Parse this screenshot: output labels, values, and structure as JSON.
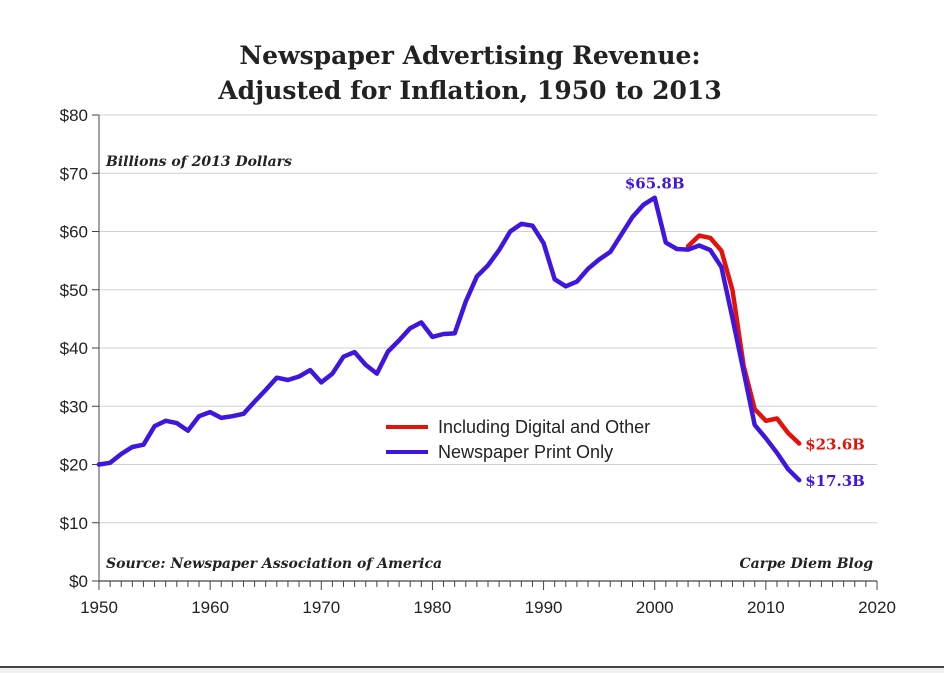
{
  "chart_data": {
    "type": "line",
    "title_line1": "Newspaper Advertising Revenue:",
    "title_line2": "Adjusted for Inflation, 1950 to 2013",
    "ylabel": "Billions of 2013 Dollars",
    "xlabel": "",
    "xlim": [
      1950,
      2020
    ],
    "ylim": [
      0,
      80
    ],
    "x_ticks": [
      1950,
      1960,
      1970,
      1980,
      1990,
      2000,
      2010,
      2020
    ],
    "y_ticks": [
      {
        "value": 0,
        "label": "$0"
      },
      {
        "value": 10,
        "label": "$10"
      },
      {
        "value": 20,
        "label": "$20"
      },
      {
        "value": 30,
        "label": "$30"
      },
      {
        "value": 40,
        "label": "$40"
      },
      {
        "value": 50,
        "label": "$50"
      },
      {
        "value": 60,
        "label": "$60"
      },
      {
        "value": 70,
        "label": "$70"
      },
      {
        "value": 80,
        "label": "$80"
      }
    ],
    "grid": "horizontal",
    "legend_position": "lower-center",
    "source_note": "Source: Newspaper Association of America",
    "credit_note": "Carpe Diem Blog",
    "series": [
      {
        "name": "Including Digital and Other",
        "color": "#e3120b",
        "x": [
          2003,
          2004,
          2005,
          2006,
          2007,
          2008,
          2009,
          2010,
          2011,
          2012,
          2013
        ],
        "values": [
          57.5,
          59.3,
          58.9,
          56.7,
          49.9,
          37.0,
          29.5,
          27.5,
          27.9,
          25.4,
          23.6
        ]
      },
      {
        "name": "Newspaper Print Only",
        "color": "#3f16e0",
        "x": [
          1950,
          1951,
          1952,
          1953,
          1954,
          1955,
          1956,
          1957,
          1958,
          1959,
          1960,
          1961,
          1962,
          1963,
          1964,
          1965,
          1966,
          1967,
          1968,
          1969,
          1970,
          1971,
          1972,
          1973,
          1974,
          1975,
          1976,
          1977,
          1978,
          1979,
          1980,
          1981,
          1982,
          1983,
          1984,
          1985,
          1986,
          1987,
          1988,
          1989,
          1990,
          1991,
          1992,
          1993,
          1994,
          1995,
          1996,
          1997,
          1998,
          1999,
          2000,
          2001,
          2002,
          2003,
          2004,
          2005,
          2006,
          2007,
          2008,
          2009,
          2010,
          2011,
          2012,
          2013
        ],
        "values": [
          20.0,
          20.3,
          21.8,
          23.0,
          23.4,
          26.6,
          27.5,
          27.1,
          25.8,
          28.3,
          29.0,
          28.0,
          28.3,
          28.7,
          30.8,
          32.8,
          34.9,
          34.5,
          35.1,
          36.2,
          34.1,
          35.6,
          38.5,
          39.3,
          37.1,
          35.6,
          39.4,
          41.3,
          43.4,
          44.4,
          41.9,
          42.4,
          42.5,
          48.0,
          52.3,
          54.2,
          56.8,
          60.0,
          61.3,
          61.0,
          58.0,
          51.8,
          50.6,
          51.4,
          53.6,
          55.2,
          56.5,
          59.5,
          62.5,
          64.6,
          65.8,
          58.1,
          57.0,
          56.9,
          57.6,
          56.8,
          53.9,
          45.1,
          36.0,
          26.8,
          24.5,
          22.0,
          19.2,
          17.3
        ]
      }
    ],
    "annotations": [
      {
        "text": "$65.8B",
        "x": 2000,
        "y": 65.8,
        "color": "#3f16e0"
      },
      {
        "text": "$23.6B",
        "x": 2013,
        "y": 23.6,
        "color": "#e3120b"
      },
      {
        "text": "$17.3B",
        "x": 2013,
        "y": 17.3,
        "color": "#3f16e0"
      }
    ]
  }
}
